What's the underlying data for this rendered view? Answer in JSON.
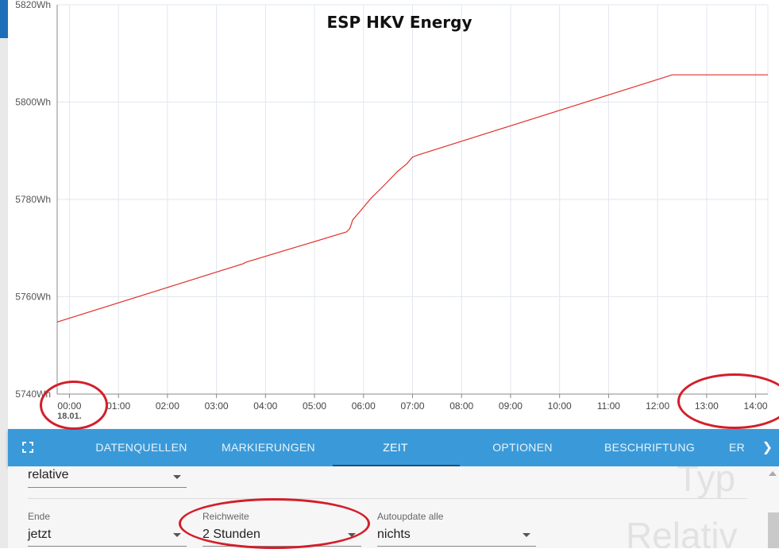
{
  "chart_data": {
    "type": "line",
    "title": "ESP HKV Energy",
    "date_label": "18.01.",
    "x_ticks": [
      "00:00",
      "01:00",
      "02:00",
      "03:00",
      "04:00",
      "05:00",
      "06:00",
      "07:00",
      "08:00",
      "09:00",
      "10:00",
      "11:00",
      "12:00",
      "13:00",
      "14:00"
    ],
    "y_ticks": [
      {
        "value": 5740,
        "label": "5740Wh"
      },
      {
        "value": 5760,
        "label": "5760Wh"
      },
      {
        "value": 5780,
        "label": "5780Wh"
      },
      {
        "value": 5800,
        "label": "5800Wh"
      },
      {
        "value": 5820,
        "label": "5820Wh"
      }
    ],
    "xlim": [
      -0.25,
      14.25
    ],
    "ylim": [
      5740,
      5820
    ],
    "grid": true,
    "series": [
      {
        "color": "#e0302a",
        "points": [
          [
            -0.25,
            5754.8
          ],
          [
            3.55,
            5766.8
          ],
          [
            3.6,
            5767.1
          ],
          [
            5.65,
            5773.3
          ],
          [
            5.72,
            5774.0
          ],
          [
            5.78,
            5775.8
          ],
          [
            5.95,
            5777.8
          ],
          [
            6.15,
            5780.2
          ],
          [
            6.4,
            5782.7
          ],
          [
            6.7,
            5785.8
          ],
          [
            6.88,
            5787.3
          ],
          [
            7.0,
            5788.7
          ],
          [
            7.1,
            5789.1
          ],
          [
            12.3,
            5805.6
          ],
          [
            14.25,
            5805.6
          ]
        ]
      }
    ]
  },
  "toolbar": {
    "tabs": [
      "DATENQUELLEN",
      "MARKIERUNGEN",
      "ZEIT",
      "OPTIONEN",
      "BESCHRIFTUNG",
      "ER"
    ],
    "active_tab": "ZEIT"
  },
  "panel": {
    "type_value": "relative",
    "ende_label": "Ende",
    "ende_value": "jetzt",
    "reichweite_label": "Reichweite",
    "reichweite_value": "2 Stunden",
    "autoupdate_label": "Autoupdate alle",
    "autoupdate_value": "nichts",
    "ghost_typ": "Typ",
    "ghost_relativ": "Relativ"
  },
  "colors": {
    "accent": "#3a9ad9",
    "line": "#e0302a",
    "annotation": "#d41e2a"
  },
  "icons": {
    "back": "arrow-left-icon",
    "fullscreen": "fullscreen-icon",
    "next": "chevron-right-icon"
  }
}
